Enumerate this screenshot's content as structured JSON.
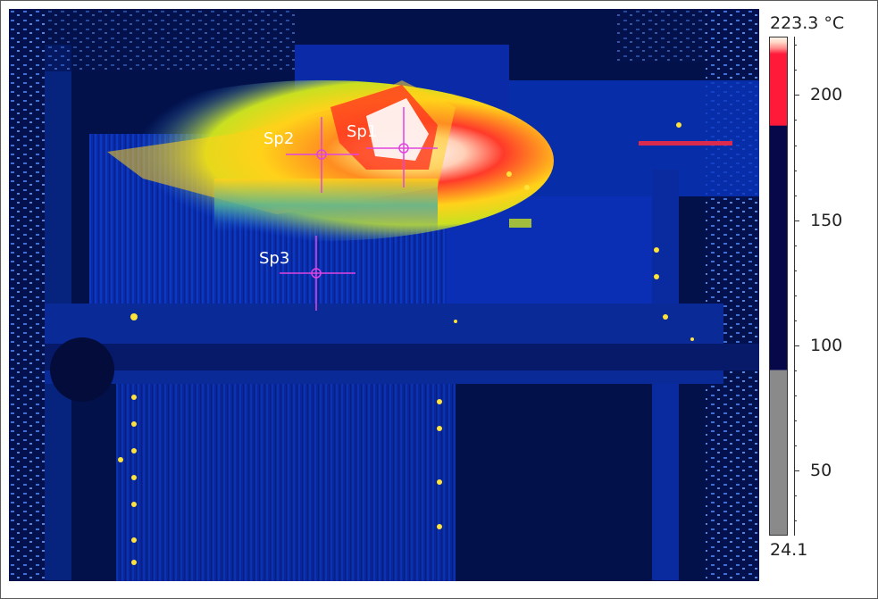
{
  "image": {
    "description_icon": "thermal-camera-image",
    "palette": "iron-style false color with saturated isotherm"
  },
  "spots": [
    {
      "label": "Sp1",
      "color": "#e044e0"
    },
    {
      "label": "Sp2",
      "color": "#e044e0"
    },
    {
      "label": "Sp3",
      "color": "#e044e0"
    }
  ],
  "temperature_scale": {
    "max_label": "223.3 °C",
    "min_label": "24.1",
    "max": 223.3,
    "min": 24.1,
    "ticks": [
      {
        "value": 200,
        "label": "200"
      },
      {
        "value": 150,
        "label": "150"
      },
      {
        "value": 100,
        "label": "100"
      },
      {
        "value": 50,
        "label": "50"
      }
    ],
    "isotherm_color": "#06084a",
    "isotherm_from": 90,
    "isotherm_to": 188,
    "low_color": "#8a8a8a"
  }
}
